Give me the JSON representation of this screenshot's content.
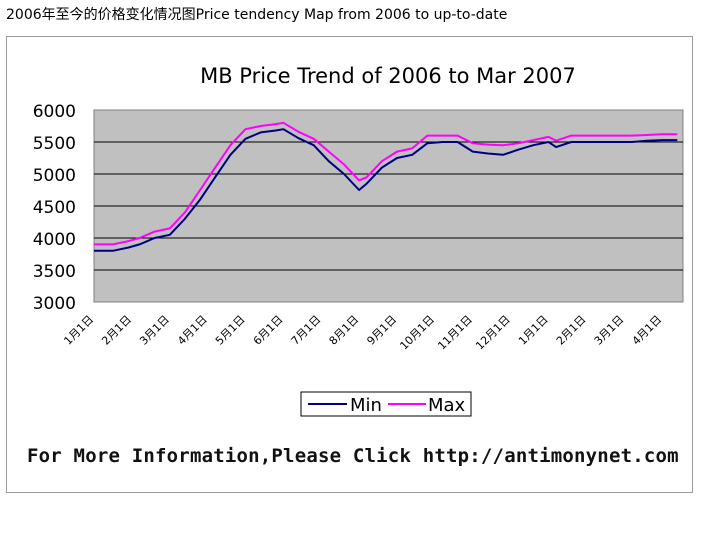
{
  "caption": "2006年至今的价格变化情况图Price tendency Map from 2006 to up-to-date",
  "footer": "For More Information,Please Click http://antimonynet.com",
  "chart_data": {
    "type": "line",
    "title": "MB Price Trend of 2006 to Mar 2007",
    "xlabel": "",
    "ylabel": "",
    "ylim": [
      3000,
      6000
    ],
    "yticks": [
      "6000",
      "5500",
      "5000",
      "4500",
      "4000",
      "3500",
      "3000"
    ],
    "categories": [
      "1月1日",
      "2月1日",
      "3月1日",
      "4月1日",
      "5月1日",
      "6月1日",
      "7月1日",
      "8月1日",
      "9月1日",
      "10月1日",
      "11月1日",
      "12月1日",
      "1月1日",
      "2月1日",
      "3月1日",
      "4月1日"
    ],
    "grid": true,
    "legend_position": "bottom",
    "plot_background": "#c0c0c0",
    "series": [
      {
        "name": "Min",
        "color": "#000080",
        "x": [
          0,
          0.5,
          0.9,
          1.2,
          1.6,
          2.0,
          2.4,
          2.8,
          3.2,
          3.6,
          4.0,
          4.4,
          4.8,
          5.0,
          5.4,
          5.8,
          6.2,
          6.6,
          7.0,
          7.2,
          7.6,
          8.0,
          8.4,
          8.8,
          9.2,
          9.6,
          10.0,
          10.4,
          10.8,
          11.2,
          11.6,
          12.0,
          12.2,
          12.6,
          13.0,
          13.4,
          13.8,
          14.2,
          14.6,
          15.0,
          15.4
        ],
        "values": [
          3800,
          3800,
          3850,
          3900,
          4000,
          4050,
          4300,
          4600,
          4950,
          5300,
          5550,
          5650,
          5680,
          5700,
          5560,
          5450,
          5200,
          5000,
          4750,
          4850,
          5100,
          5250,
          5300,
          5480,
          5500,
          5500,
          5350,
          5320,
          5300,
          5380,
          5450,
          5500,
          5420,
          5500,
          5500,
          5500,
          5500,
          5500,
          5520,
          5530,
          5530
        ]
      },
      {
        "name": "Max",
        "color": "#ff00ff",
        "x": [
          0,
          0.5,
          0.9,
          1.2,
          1.6,
          2.0,
          2.4,
          2.8,
          3.2,
          3.6,
          4.0,
          4.4,
          4.8,
          5.0,
          5.4,
          5.8,
          6.2,
          6.6,
          7.0,
          7.2,
          7.6,
          8.0,
          8.4,
          8.8,
          9.2,
          9.6,
          10.0,
          10.4,
          10.8,
          11.2,
          11.6,
          12.0,
          12.2,
          12.6,
          13.0,
          13.4,
          13.8,
          14.2,
          14.6,
          15.0,
          15.4
        ],
        "values": [
          3900,
          3900,
          3950,
          4000,
          4100,
          4150,
          4400,
          4750,
          5100,
          5450,
          5700,
          5750,
          5780,
          5800,
          5660,
          5550,
          5350,
          5150,
          4900,
          4950,
          5200,
          5350,
          5400,
          5600,
          5600,
          5600,
          5480,
          5460,
          5450,
          5480,
          5530,
          5580,
          5520,
          5600,
          5600,
          5600,
          5600,
          5600,
          5610,
          5620,
          5620
        ]
      }
    ]
  }
}
